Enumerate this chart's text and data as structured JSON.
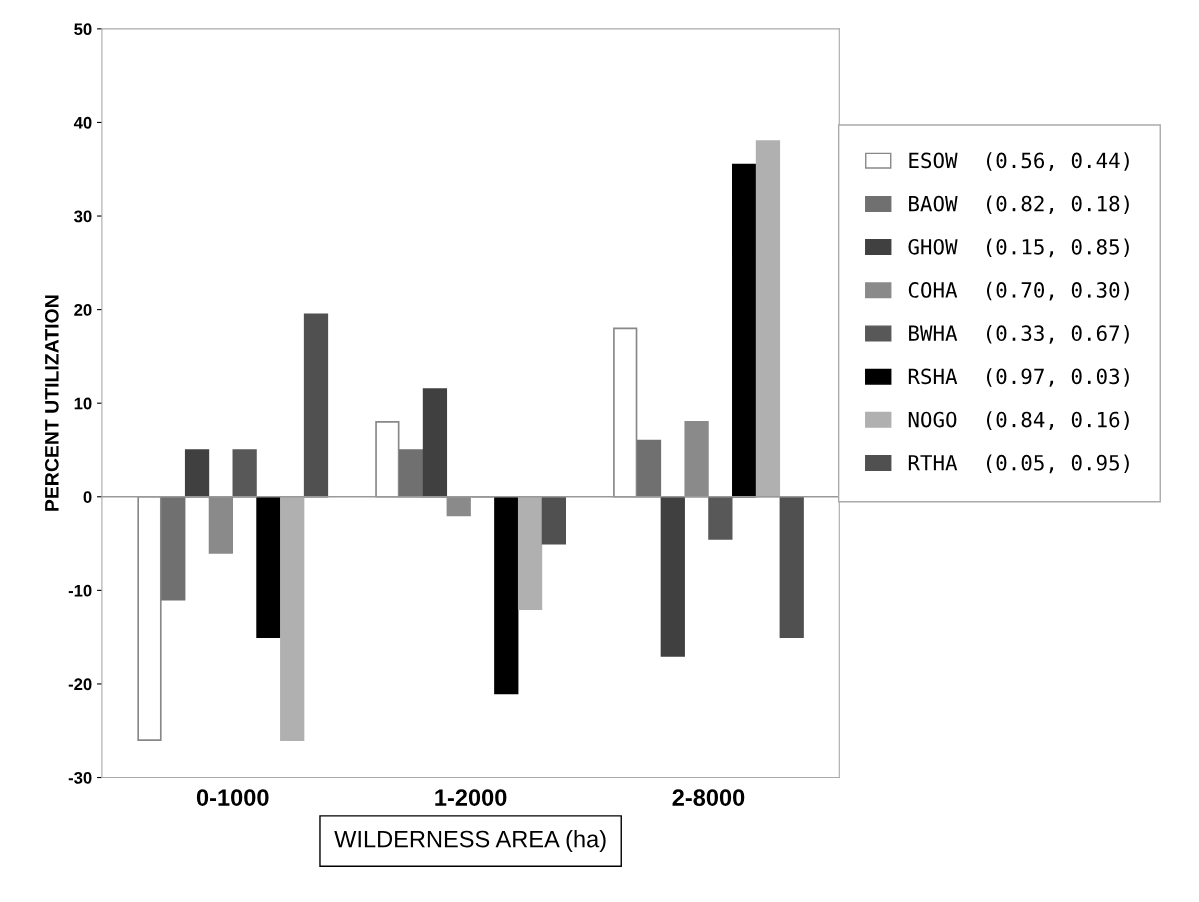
{
  "chart_data": {
    "type": "bar",
    "xlabel": "WILDERNESS AREA (ha)",
    "ylabel": "PERCENT UTILIZATION",
    "categories": [
      "0-1000",
      "1-2000",
      "2-8000"
    ],
    "series": [
      {
        "name": "ESOW  (0.56, 0.44)",
        "color": "#ffffff",
        "values": [
          -26,
          8,
          18
        ]
      },
      {
        "name": "BAOW  (0.82, 0.18)",
        "color": "#707070",
        "values": [
          -11,
          5,
          6
        ]
      },
      {
        "name": "GHOW  (0.15, 0.85)",
        "color": "#404040",
        "values": [
          5,
          11.5,
          -17
        ]
      },
      {
        "name": "COHA  (0.70, 0.30)",
        "color": "#8a8a8a",
        "values": [
          -6,
          -2,
          8
        ]
      },
      {
        "name": "BWHA  (0.33, 0.67)",
        "color": "#585858",
        "values": [
          5,
          0,
          -4.5
        ]
      },
      {
        "name": "RSHA  (0.97, 0.03)",
        "color": "#000000",
        "values": [
          -15,
          -21,
          35.5
        ]
      },
      {
        "name": "NOGO  (0.84, 0.16)",
        "color": "#b0b0b0",
        "values": [
          -26,
          -12,
          38
        ]
      },
      {
        "name": "RTHA  (0.05, 0.95)",
        "color": "#505050",
        "values": [
          19.5,
          -5,
          -15
        ]
      }
    ],
    "ylim": [
      -30,
      50
    ],
    "yticks": [
      -30,
      -20,
      -10,
      0,
      10,
      20,
      30,
      40,
      50
    ],
    "ref_lines": [
      {
        "axis": "y",
        "value": 0,
        "color": "#999999"
      }
    ],
    "grid": false,
    "legend": "right"
  }
}
